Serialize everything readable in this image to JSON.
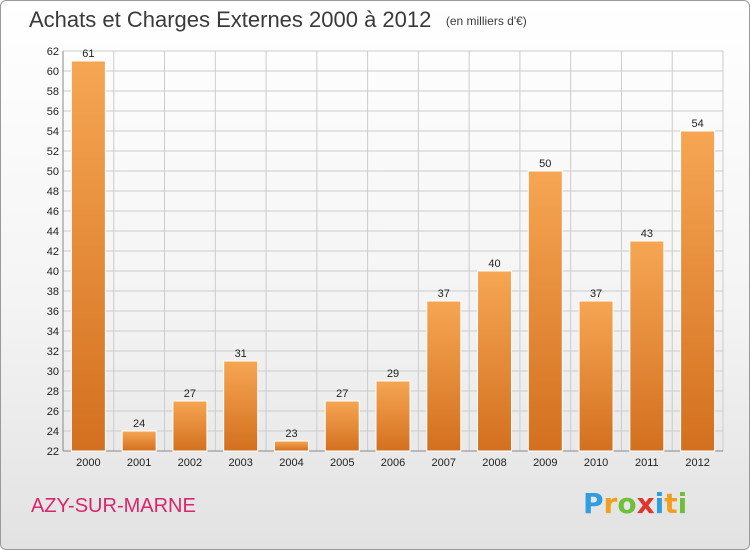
{
  "header": {
    "title": "Achats et Charges Externes 2000 à 2012",
    "subtitle": "(en milliers d'€)"
  },
  "footer": {
    "place": "AZY-SUR-MARNE",
    "logo": [
      "P",
      "r",
      "o",
      "x",
      "i",
      "t",
      "i"
    ],
    "logo_colors": [
      "#2f9de0",
      "#f0a020",
      "#6fbf3a",
      "#e0352b",
      "#2f9de0",
      "#f0a020",
      "#6fbf3a"
    ]
  },
  "colors": {
    "bar_light": "#f6a653",
    "bar_dark": "#d3701f",
    "grid": "#cccccc",
    "axis": "#888888",
    "place": "#d8266e"
  },
  "chart_data": {
    "type": "bar",
    "categories": [
      "2000",
      "2001",
      "2002",
      "2003",
      "2004",
      "2005",
      "2006",
      "2007",
      "2008",
      "2009",
      "2010",
      "2011",
      "2012"
    ],
    "values": [
      61,
      24,
      27,
      31,
      23,
      27,
      29,
      37,
      40,
      50,
      37,
      43,
      54
    ],
    "ylim": [
      22,
      62
    ],
    "ystep": 2,
    "grid": true
  }
}
